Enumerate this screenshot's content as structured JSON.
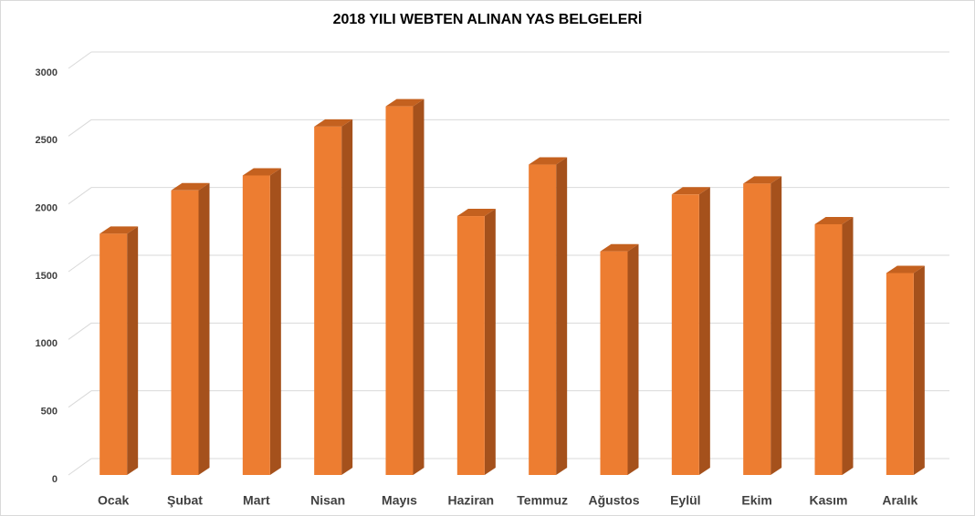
{
  "chart_data": {
    "type": "bar3d",
    "title": "2018 YILI WEBTEN ALINAN YAS BELGELERİ",
    "categories": [
      "Ocak",
      "Şubat",
      "Mart",
      "Nisan",
      "Mayıs",
      "Haziran",
      "Temmuz",
      "Ağustos",
      "Eylül",
      "Ekim",
      "Kasım",
      "Aralık"
    ],
    "values": [
      1780,
      2100,
      2210,
      2570,
      2720,
      1910,
      2290,
      1650,
      2070,
      2150,
      1850,
      1490
    ],
    "color": "#ed7d31",
    "ylim": [
      0,
      3000
    ],
    "yticks": [
      0,
      500,
      1000,
      1500,
      2000,
      2500,
      3000
    ],
    "grid": true
  }
}
